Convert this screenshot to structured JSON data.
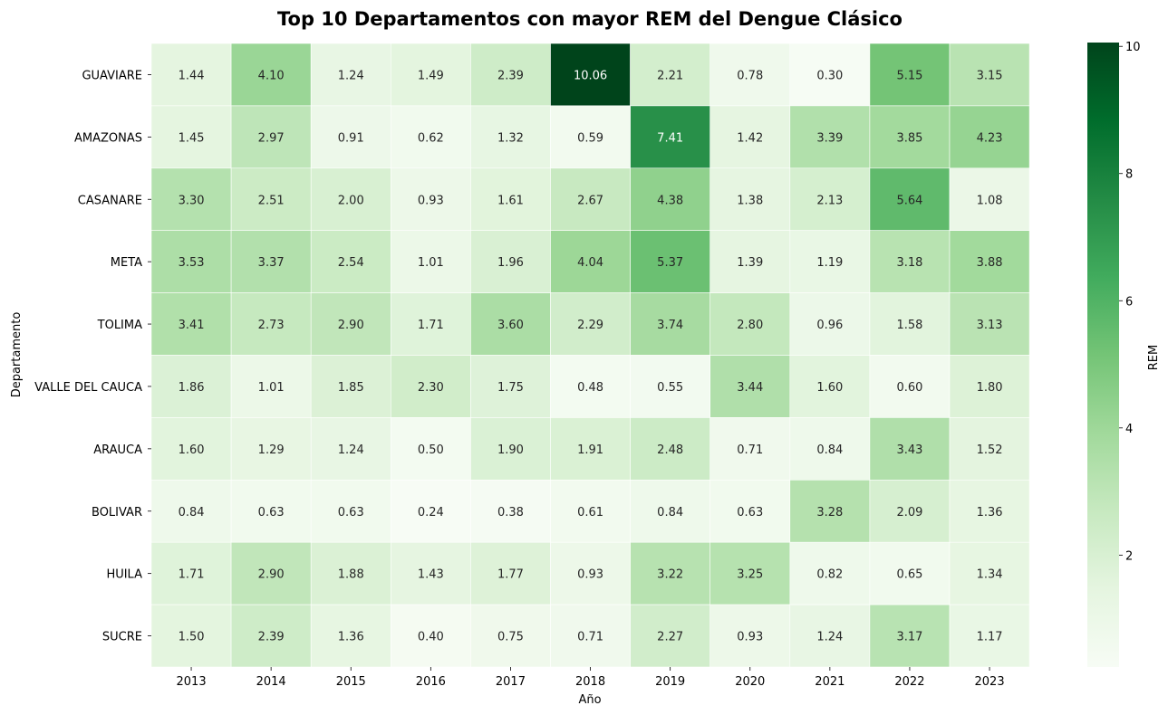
{
  "chart_data": {
    "type": "heatmap",
    "title": "Top 10 Departamentos con mayor REM del Dengue Clásico",
    "xlabel": "Año",
    "ylabel": "Departamento",
    "colorbar_label": "REM",
    "colormap": "Greens",
    "vmin": 0.24,
    "vmax": 10.06,
    "colorbar_ticks": [
      "2",
      "4",
      "6",
      "8",
      "10"
    ],
    "colorbar_tick_values": [
      2,
      4,
      6,
      8,
      10
    ],
    "x_categories": [
      "2013",
      "2014",
      "2015",
      "2016",
      "2017",
      "2018",
      "2019",
      "2020",
      "2021",
      "2022",
      "2023"
    ],
    "y_categories": [
      "GUAVIARE",
      "AMAZONAS",
      "CASANARE",
      "META",
      "TOLIMA",
      "VALLE DEL CAUCA",
      "ARAUCA",
      "BOLIVAR",
      "HUILA",
      "SUCRE"
    ],
    "values": [
      [
        "1.44",
        "4.10",
        "1.24",
        "1.49",
        "2.39",
        "10.06",
        "2.21",
        "0.78",
        "0.30",
        "5.15",
        "3.15"
      ],
      [
        "1.45",
        "2.97",
        "0.91",
        "0.62",
        "1.32",
        "0.59",
        "7.41",
        "1.42",
        "3.39",
        "3.85",
        "4.23"
      ],
      [
        "3.30",
        "2.51",
        "2.00",
        "0.93",
        "1.61",
        "2.67",
        "4.38",
        "1.38",
        "2.13",
        "5.64",
        "1.08"
      ],
      [
        "3.53",
        "3.37",
        "2.54",
        "1.01",
        "1.96",
        "4.04",
        "5.37",
        "1.39",
        "1.19",
        "3.18",
        "3.88"
      ],
      [
        "3.41",
        "2.73",
        "2.90",
        "1.71",
        "3.60",
        "2.29",
        "3.74",
        "2.80",
        "0.96",
        "1.58",
        "3.13"
      ],
      [
        "1.86",
        "1.01",
        "1.85",
        "2.30",
        "1.75",
        "0.48",
        "0.55",
        "3.44",
        "1.60",
        "0.60",
        "1.80"
      ],
      [
        "1.60",
        "1.29",
        "1.24",
        "0.50",
        "1.90",
        "1.91",
        "2.48",
        "0.71",
        "0.84",
        "3.43",
        "1.52"
      ],
      [
        "0.84",
        "0.63",
        "0.63",
        "0.24",
        "0.38",
        "0.61",
        "0.84",
        "0.63",
        "3.28",
        "2.09",
        "1.36"
      ],
      [
        "1.71",
        "2.90",
        "1.88",
        "1.43",
        "1.77",
        "0.93",
        "3.22",
        "3.25",
        "0.82",
        "0.65",
        "1.34"
      ],
      [
        "1.50",
        "2.39",
        "1.36",
        "0.40",
        "0.75",
        "0.71",
        "2.27",
        "0.93",
        "1.24",
        "3.17",
        "1.17"
      ]
    ]
  }
}
